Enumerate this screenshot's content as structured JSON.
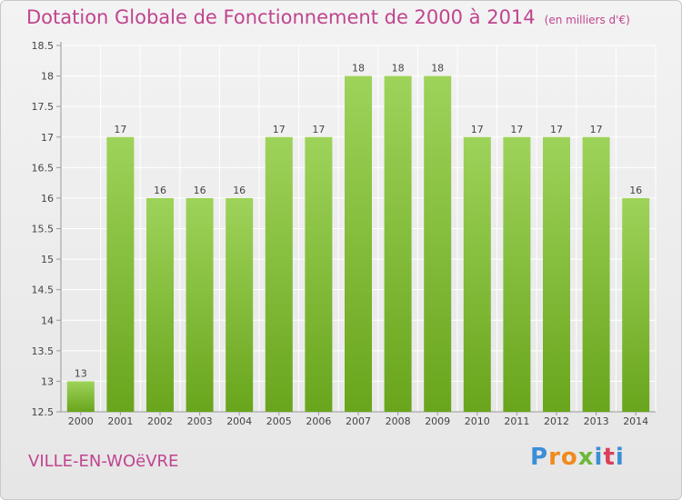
{
  "title": "Dotation Globale de Fonctionnement de 2000 à 2014",
  "unit": "(en milliers d'€)",
  "location": "VILLE-EN-WOëVRE",
  "logo": {
    "letters": [
      "P",
      "r",
      "o",
      "x",
      "i",
      "t",
      "i"
    ],
    "colors": [
      "#3a8fd6",
      "#f08a1d",
      "#f08a1d",
      "#6cb83a",
      "#3a8fd6",
      "#d9405b",
      "#3a8fd6"
    ]
  },
  "colors": {
    "title": "#c0448f",
    "bar_light": "#9ed35a",
    "bar_dark": "#69a51c",
    "grid": "#ffffff",
    "text": "#444444"
  },
  "chart_data": {
    "type": "bar",
    "categories": [
      "2000",
      "2001",
      "2002",
      "2003",
      "2004",
      "2005",
      "2006",
      "2007",
      "2008",
      "2009",
      "2010",
      "2011",
      "2012",
      "2013",
      "2014"
    ],
    "values": [
      13,
      17,
      16,
      16,
      16,
      17,
      17,
      18,
      18,
      18,
      17,
      17,
      17,
      17,
      16
    ],
    "value_labels": [
      "13",
      "17",
      "16",
      "16",
      "16",
      "17",
      "17",
      "18",
      "18",
      "18",
      "17",
      "17",
      "17",
      "17",
      "16"
    ],
    "ylim": [
      12.5,
      18.5
    ],
    "yticks": [
      12.5,
      13,
      13.5,
      14,
      14.5,
      15,
      15.5,
      16,
      16.5,
      17,
      17.5,
      18,
      18.5
    ],
    "ytick_labels": [
      "12.5",
      "13",
      "13.5",
      "14",
      "14.5",
      "15",
      "15.5",
      "16",
      "16.5",
      "17",
      "17.5",
      "18",
      "18.5"
    ],
    "grid": true,
    "legend": "none"
  }
}
